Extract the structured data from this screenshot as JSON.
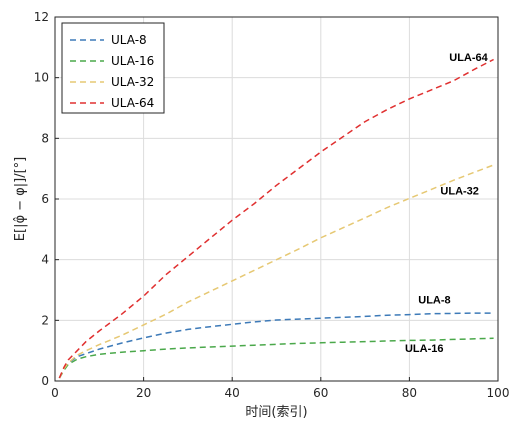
{
  "chart_data": {
    "type": "line",
    "title": "",
    "xlabel": "时间(索引)",
    "ylabel": "E[|φ̂ − φ|]/[°]",
    "xlim": [
      0,
      100
    ],
    "ylim": [
      0,
      12
    ],
    "xticks": [
      0,
      20,
      40,
      60,
      80,
      100
    ],
    "yticks": [
      0,
      2,
      4,
      6,
      8,
      10,
      12
    ],
    "grid": true,
    "legend_position": "top-left",
    "x": [
      1,
      2,
      3,
      5,
      7,
      10,
      15,
      20,
      25,
      30,
      35,
      40,
      45,
      50,
      55,
      60,
      65,
      70,
      75,
      80,
      85,
      90,
      95,
      99
    ],
    "series": [
      {
        "name": "ULA-8",
        "color": "#3d7ab8",
        "values": [
          0.1,
          0.4,
          0.6,
          0.8,
          0.9,
          1.05,
          1.25,
          1.42,
          1.58,
          1.7,
          1.79,
          1.87,
          1.95,
          2.01,
          2.04,
          2.07,
          2.1,
          2.13,
          2.17,
          2.19,
          2.22,
          2.23,
          2.24,
          2.24
        ]
      },
      {
        "name": "ULA-16",
        "color": "#4aa84a",
        "values": [
          0.1,
          0.35,
          0.55,
          0.72,
          0.8,
          0.88,
          0.95,
          1.0,
          1.05,
          1.09,
          1.12,
          1.15,
          1.18,
          1.21,
          1.24,
          1.26,
          1.28,
          1.3,
          1.32,
          1.34,
          1.35,
          1.37,
          1.39,
          1.41
        ]
      },
      {
        "name": "ULA-32",
        "color": "#e6c873",
        "values": [
          0.1,
          0.4,
          0.6,
          0.85,
          1.0,
          1.2,
          1.5,
          1.85,
          2.2,
          2.6,
          2.95,
          3.3,
          3.65,
          4.0,
          4.35,
          4.72,
          5.05,
          5.38,
          5.72,
          6.02,
          6.32,
          6.62,
          6.9,
          7.12
        ]
      },
      {
        "name": "ULA-64",
        "color": "#e03030",
        "values": [
          0.1,
          0.45,
          0.7,
          1.0,
          1.3,
          1.65,
          2.2,
          2.8,
          3.5,
          4.1,
          4.7,
          5.3,
          5.85,
          6.45,
          7.0,
          7.55,
          8.05,
          8.55,
          8.95,
          9.3,
          9.6,
          9.9,
          10.3,
          10.6
        ]
      }
    ],
    "annotations": [
      {
        "text": "ULA-64",
        "x": 89,
        "y": 10.55
      },
      {
        "text": "ULA-32",
        "x": 87,
        "y": 6.15
      },
      {
        "text": "ULA-8",
        "x": 82,
        "y": 2.55
      },
      {
        "text": "ULA-16",
        "x": 79,
        "y": 0.95
      }
    ]
  }
}
